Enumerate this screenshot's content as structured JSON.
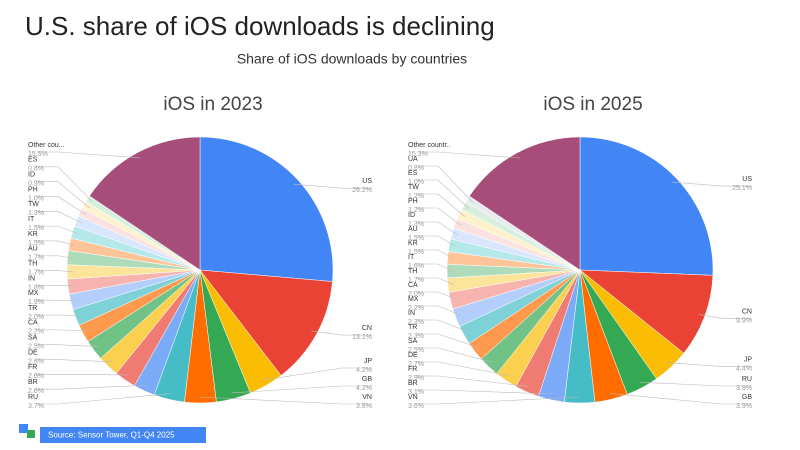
{
  "title": "U.S. share of iOS downloads is declining",
  "subtitle": "Share of iOS downloads by countries",
  "source": "Source: Sensor Tower,  Q1-Q4 2025",
  "chart_data": [
    {
      "type": "pie",
      "title": "iOS in 2023",
      "categories": [
        "US",
        "CN",
        "JP",
        "GB",
        "VN",
        "RU",
        "BR",
        "FR",
        "DE",
        "SA",
        "CA",
        "TR",
        "MX",
        "IN",
        "TH",
        "AU",
        "KR",
        "IT",
        "TW",
        "PH",
        "ID",
        "ES",
        "Other cou..."
      ],
      "values": [
        26.2,
        13.1,
        4.2,
        4.2,
        3.8,
        3.7,
        2.6,
        2.6,
        2.6,
        2.5,
        2.2,
        2.0,
        1.9,
        1.8,
        1.7,
        1.7,
        1.5,
        1.5,
        1.3,
        1.0,
        0.9,
        0.8,
        15.5
      ],
      "value_labels": [
        "26.2%",
        "13.1%",
        "4.2%",
        "4.2%",
        "3.8%",
        "3.7%",
        "2.6%",
        "2.6%",
        "2.6%",
        "2.5%",
        "2.2%",
        "2.0%",
        "1.9%",
        "1.8%",
        "1.7%",
        "1.7%",
        "1.5%",
        "1.5%",
        "1.3%",
        "1.0%",
        "0.9%",
        "0.8%",
        "15.5%"
      ],
      "colors": [
        "#4285f4",
        "#ea4335",
        "#fbbc04",
        "#34a853",
        "#ff6d01",
        "#46bdc6",
        "#7baaf7",
        "#f07b72",
        "#fcd04f",
        "#71c287",
        "#ff994d",
        "#7ed1d7",
        "#b3cefb",
        "#f7b4ae",
        "#fde49b",
        "#aedcba",
        "#ffc599",
        "#b5e8eb",
        "#d9e6fd",
        "#fbe1df",
        "#fef1cd",
        "#d7efdd",
        "#a64d79"
      ]
    },
    {
      "type": "pie",
      "title": "iOS in 2025",
      "categories": [
        "US",
        "CN",
        "JP",
        "RU",
        "GB",
        "VN",
        "BR",
        "FR",
        "DE",
        "SA",
        "TR",
        "IN",
        "MX",
        "CA",
        "TH",
        "IT",
        "KR",
        "AU",
        "ID",
        "PH",
        "TW",
        "ES",
        "UA",
        "Other countr.."
      ],
      "values": [
        25.1,
        9.9,
        4.4,
        3.9,
        3.9,
        3.6,
        3.1,
        2.9,
        2.7,
        2.5,
        2.3,
        2.3,
        2.2,
        2.0,
        1.7,
        1.6,
        1.5,
        1.5,
        1.3,
        1.2,
        1.2,
        1.0,
        0.8,
        15.3
      ],
      "value_labels": [
        "25.1%",
        "9.9%",
        "4.4%",
        "3.9%",
        "3.9%",
        "3.6%",
        "3.1%",
        "2.9%",
        "2.7%",
        "2.5%",
        "2.3%",
        "2.3%",
        "2.2%",
        "2.0%",
        "1.7%",
        "1.6%",
        "1.5%",
        "1.5%",
        "1.3%",
        "1.2%",
        "1.2%",
        "1.0%",
        "0.8%",
        "15.3%"
      ],
      "colors": [
        "#4285f4",
        "#ea4335",
        "#fbbc04",
        "#34a853",
        "#ff6d01",
        "#46bdc6",
        "#7baaf7",
        "#f07b72",
        "#fcd04f",
        "#71c287",
        "#ff994d",
        "#7ed1d7",
        "#b3cefb",
        "#f7b4ae",
        "#fde49b",
        "#aedcba",
        "#ffc599",
        "#b5e8eb",
        "#d9e6fd",
        "#fbe1df",
        "#fef1cd",
        "#d7efdd",
        "#e8eaed",
        "#a64d79"
      ]
    }
  ]
}
